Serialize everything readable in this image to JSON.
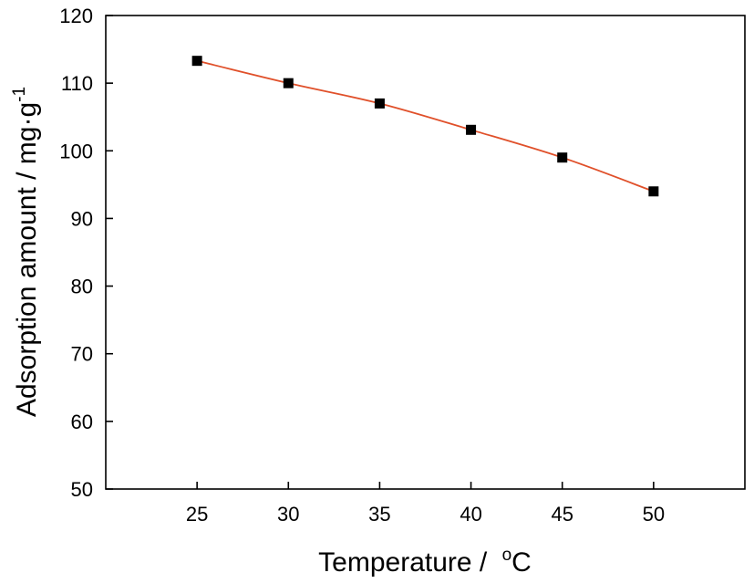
{
  "chart_data": {
    "type": "line",
    "title": "",
    "xlabel": "Temperature /",
    "xlabel_unit": "oC",
    "ylabel": "Adsorption amount / mg·g",
    "ylabel_superscript": "-1",
    "xlim": [
      20,
      55
    ],
    "ylim": [
      50,
      120
    ],
    "xticks": [
      25,
      30,
      35,
      40,
      45,
      50
    ],
    "yticks": [
      50,
      60,
      70,
      80,
      90,
      100,
      110,
      120
    ],
    "series": [
      {
        "x": [
          25,
          30,
          35,
          40,
          45,
          50
        ],
        "y": [
          113.3,
          110.0,
          107.0,
          103.1,
          99.0,
          94.0
        ],
        "marker": "square",
        "marker_color": "#000000",
        "line_color": "#e0502a"
      }
    ],
    "grid": false,
    "legend": "none"
  }
}
